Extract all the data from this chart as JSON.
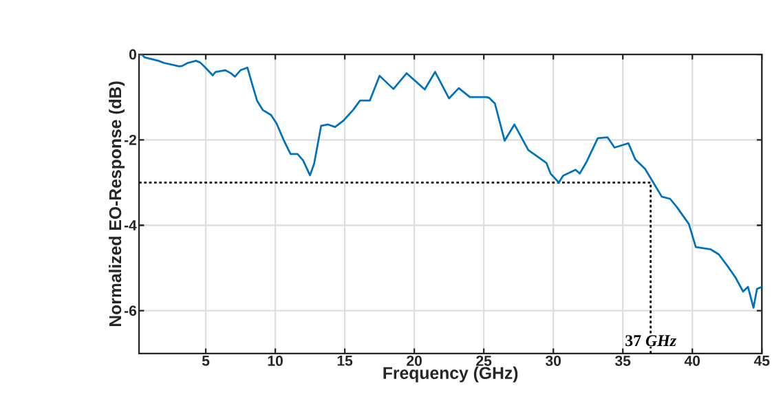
{
  "chart_data": {
    "type": "line",
    "xlabel": "Frequency (GHz)",
    "ylabel": "Normalized EO-Response (dB)",
    "xlim": [
      0.2,
      45
    ],
    "ylim": [
      -7,
      0
    ],
    "xticks": [
      5,
      10,
      15,
      20,
      25,
      30,
      35,
      40,
      45
    ],
    "yticks": [
      -6,
      -4,
      -2,
      0
    ],
    "grid": true,
    "marker": "none",
    "line_style": "solid",
    "series": [
      {
        "color": "#0072bd",
        "x": [
          0.2,
          0.4,
          0.6,
          1.6,
          2.0,
          3.1,
          3.3,
          3.7,
          4.3,
          4.6,
          4.95,
          5.5,
          5.7,
          6.4,
          6.8,
          7.1,
          7.5,
          8.0,
          8.35,
          8.7,
          9.1,
          9.7,
          10.1,
          10.6,
          11.1,
          11.6,
          12.0,
          12.5,
          12.8,
          13.3,
          13.8,
          14.3,
          14.9,
          15.6,
          16.1,
          16.8,
          17.5,
          18.5,
          19.45,
          20.75,
          21.5,
          22.5,
          23.2,
          24.0,
          25.2,
          25.4,
          25.8,
          26.5,
          27.2,
          28.2,
          28.9,
          29.5,
          29.8,
          30.4,
          30.7,
          31.6,
          31.9,
          32.4,
          33.2,
          33.9,
          34.4,
          35.4,
          35.9,
          36.6,
          37.1,
          37.8,
          38.4,
          38.9,
          39.75,
          40.25,
          41.3,
          41.9,
          42.5,
          43.1,
          43.65,
          44.0,
          44.4,
          44.65,
          45
        ],
        "values": [
          0,
          0,
          -0.07,
          -0.15,
          -0.2,
          -0.28,
          -0.27,
          -0.2,
          -0.15,
          -0.19,
          -0.3,
          -0.49,
          -0.41,
          -0.37,
          -0.44,
          -0.52,
          -0.37,
          -0.31,
          -0.71,
          -1.09,
          -1.3,
          -1.42,
          -1.62,
          -2.0,
          -2.33,
          -2.33,
          -2.48,
          -2.83,
          -2.55,
          -1.67,
          -1.64,
          -1.7,
          -1.55,
          -1.3,
          -1.08,
          -1.08,
          -0.5,
          -0.81,
          -0.44,
          -0.82,
          -0.41,
          -1.03,
          -0.79,
          -1.0,
          -1.0,
          -1.02,
          -1.15,
          -2.02,
          -1.64,
          -2.24,
          -2.4,
          -2.54,
          -2.79,
          -3.0,
          -2.84,
          -2.7,
          -2.79,
          -2.51,
          -1.96,
          -1.94,
          -2.18,
          -2.08,
          -2.46,
          -2.68,
          -2.95,
          -3.33,
          -3.38,
          -3.58,
          -3.97,
          -4.51,
          -4.56,
          -4.68,
          -4.94,
          -5.22,
          -5.55,
          -5.44,
          -5.93,
          -5.49,
          -5.44
        ]
      }
    ],
    "ref_lines": [
      {
        "axis": "y",
        "value": -3,
        "color": "#000000",
        "line_style": "dotted"
      },
      {
        "axis": "x",
        "value": 37,
        "color": "#000000",
        "line_style": "dotted"
      }
    ],
    "annotations": [
      {
        "text": "37 *GHz*",
        "x": 37,
        "y": -6.7
      }
    ]
  }
}
